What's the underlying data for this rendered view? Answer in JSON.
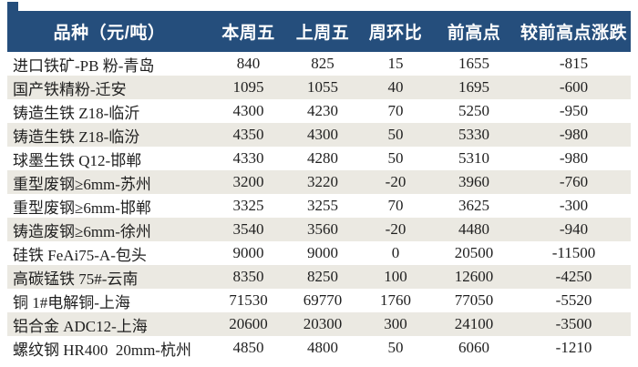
{
  "chart_data": {
    "type": "table",
    "columns": [
      "品种（元/吨）",
      "本周五",
      "上周五",
      "周环比",
      "前高点",
      "较前高点涨跌"
    ],
    "rows": [
      {
        "name": "进口铁矿-PB 粉-青岛",
        "values": [
          "840",
          "825",
          "15",
          "1655",
          "-815"
        ]
      },
      {
        "name": "国产铁精粉-迁安",
        "values": [
          "1095",
          "1055",
          "40",
          "1695",
          "-600"
        ]
      },
      {
        "name": "铸造生铁 Z18-临沂",
        "values": [
          "4300",
          "4230",
          "70",
          "5250",
          "-950"
        ]
      },
      {
        "name": "铸造生铁 Z18-临汾",
        "values": [
          "4350",
          "4300",
          "50",
          "5330",
          "-980"
        ]
      },
      {
        "name": "球墨生铁 Q12-邯郸",
        "values": [
          "4330",
          "4280",
          "50",
          "5310",
          "-980"
        ]
      },
      {
        "name": "重型废钢≥6mm-苏州",
        "values": [
          "3200",
          "3220",
          "-20",
          "3960",
          "-760"
        ]
      },
      {
        "name": "重型废钢≥6mm-邯郸",
        "values": [
          "3325",
          "3255",
          "70",
          "3625",
          "-300"
        ]
      },
      {
        "name": "铸造废钢≥6mm-徐州",
        "values": [
          "3540",
          "3560",
          "-20",
          "4480",
          "-940"
        ]
      },
      {
        "name": "硅铁 FeAi75-A-包头",
        "values": [
          "9000",
          "9000",
          "0",
          "20500",
          "-11500"
        ]
      },
      {
        "name": "高碳锰铁 75#-云南",
        "values": [
          "8350",
          "8250",
          "100",
          "12600",
          "-4250"
        ]
      },
      {
        "name": "铜 1#电解铜-上海",
        "values": [
          "71530",
          "69770",
          "1760",
          "77050",
          "-5520"
        ]
      },
      {
        "name": "铝合金 ADC12-上海",
        "values": [
          "20600",
          "20300",
          "300",
          "24100",
          "-3500"
        ]
      },
      {
        "name": "螺纹钢 HR400  20mm-杭州",
        "values": [
          "4850",
          "4800",
          "50",
          "6060",
          "-1210"
        ]
      }
    ]
  },
  "colors": {
    "header_bg": "#254e7c",
    "header_text": "#ffffff",
    "alt_row_bg": "#ebe9e2",
    "body_text": "#1f1f1f"
  }
}
